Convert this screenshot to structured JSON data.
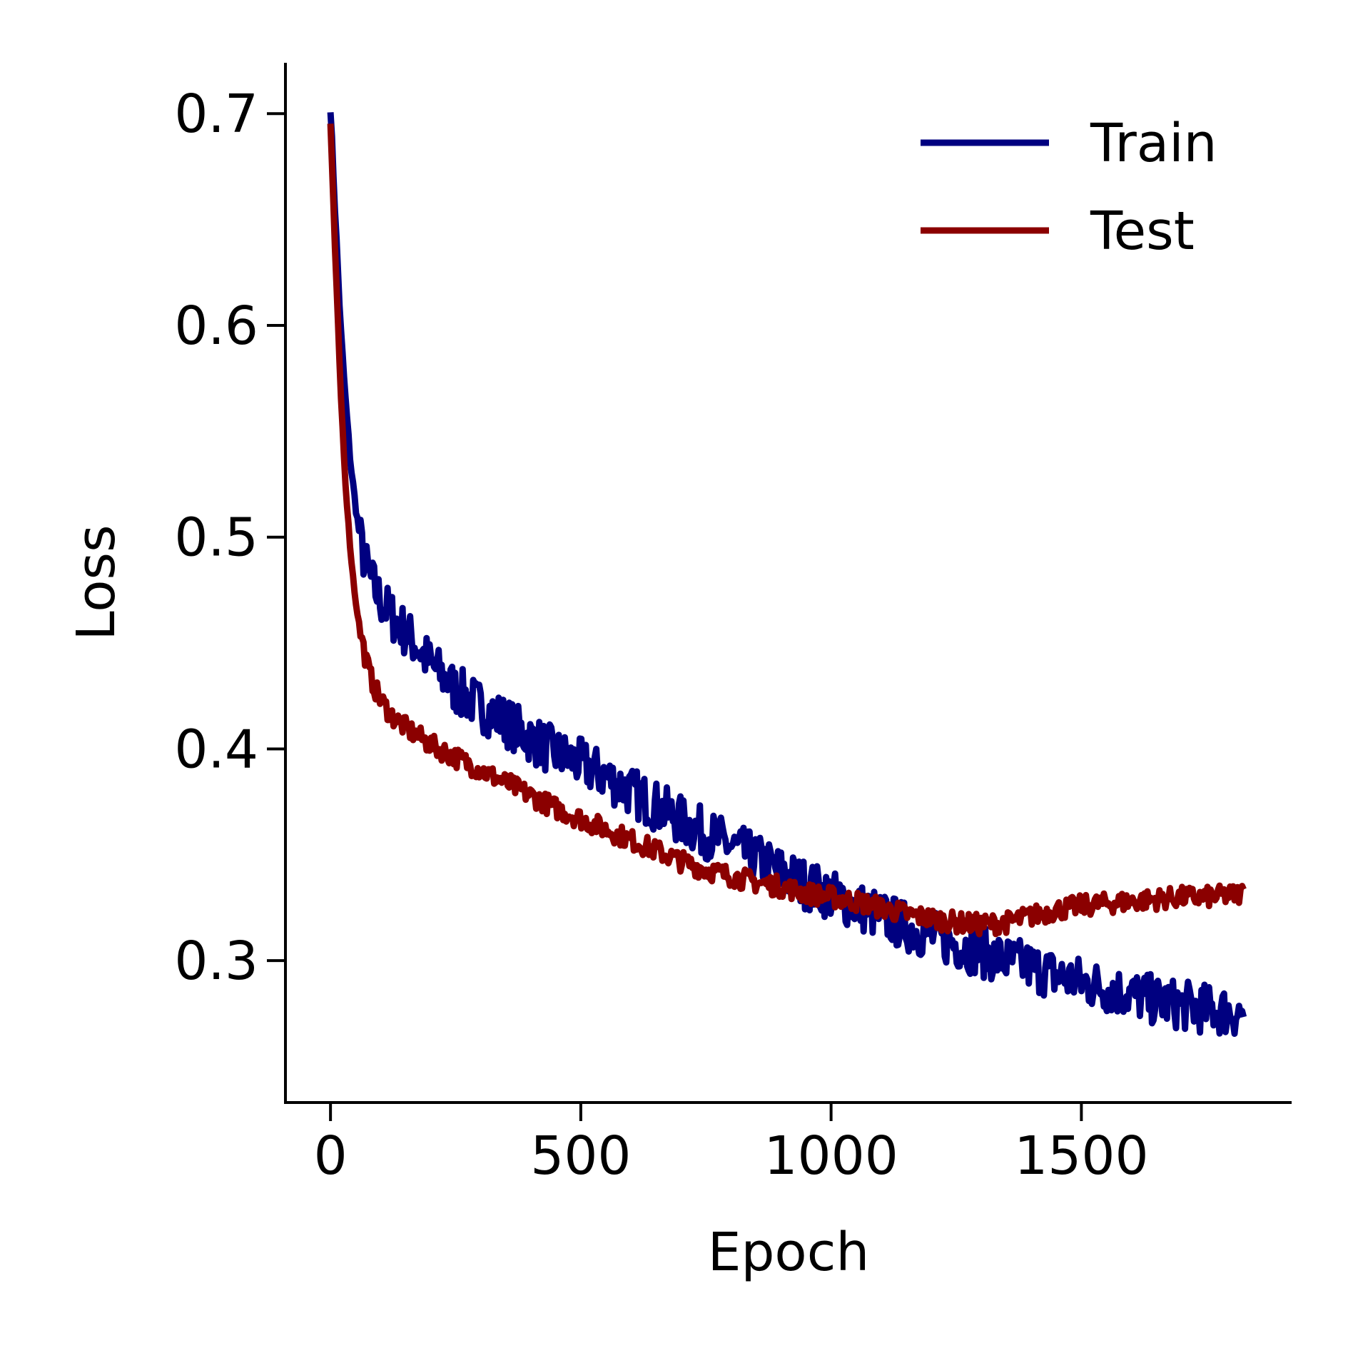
{
  "chart_data": {
    "type": "line",
    "title": "",
    "xlabel": "Epoch",
    "ylabel": "Loss",
    "xlim": [
      -90,
      1920
    ],
    "ylim": [
      0.233,
      0.724
    ],
    "xticks": [
      0,
      500,
      1000,
      1500
    ],
    "xtick_labels": [
      "0",
      "500",
      "1000",
      "1500"
    ],
    "yticks": [
      0.3,
      0.4,
      0.5,
      0.6,
      0.7
    ],
    "ytick_labels": [
      "0.3",
      "0.4",
      "0.5",
      "0.6",
      "0.7"
    ],
    "grid": false,
    "legend": {
      "placement": "top-right"
    },
    "series": [
      {
        "name": "Train",
        "color": "#000080",
        "x": [
          0,
          10,
          20,
          30,
          40,
          50,
          60,
          70,
          80,
          90,
          100,
          125,
          150,
          175,
          200,
          250,
          300,
          350,
          400,
          450,
          500,
          550,
          600,
          650,
          700,
          750,
          800,
          850,
          900,
          950,
          1000,
          1050,
          1100,
          1150,
          1200,
          1250,
          1300,
          1350,
          1400,
          1450,
          1500,
          1550,
          1600,
          1650,
          1700,
          1750,
          1800,
          1825
        ],
        "values": [
          0.703,
          0.65,
          0.6,
          0.565,
          0.535,
          0.515,
          0.498,
          0.487,
          0.48,
          0.475,
          0.47,
          0.462,
          0.455,
          0.448,
          0.44,
          0.428,
          0.42,
          0.413,
          0.405,
          0.398,
          0.393,
          0.387,
          0.38,
          0.373,
          0.366,
          0.36,
          0.354,
          0.348,
          0.342,
          0.336,
          0.331,
          0.326,
          0.321,
          0.316,
          0.312,
          0.308,
          0.304,
          0.3,
          0.297,
          0.293,
          0.29,
          0.287,
          0.284,
          0.281,
          0.279,
          0.277,
          0.276,
          0.275
        ],
        "noise": 0.012
      },
      {
        "name": "Test",
        "color": "#8b0000",
        "x": [
          0,
          10,
          20,
          30,
          40,
          50,
          60,
          70,
          80,
          90,
          100,
          125,
          150,
          175,
          200,
          250,
          300,
          350,
          400,
          450,
          500,
          550,
          600,
          650,
          700,
          750,
          800,
          850,
          900,
          950,
          1000,
          1050,
          1100,
          1150,
          1200,
          1250,
          1300,
          1350,
          1400,
          1450,
          1500,
          1550,
          1600,
          1650,
          1700,
          1750,
          1800,
          1825
        ],
        "values": [
          0.695,
          0.63,
          0.57,
          0.525,
          0.493,
          0.47,
          0.455,
          0.443,
          0.434,
          0.428,
          0.423,
          0.415,
          0.41,
          0.406,
          0.402,
          0.396,
          0.39,
          0.384,
          0.378,
          0.372,
          0.367,
          0.362,
          0.357,
          0.352,
          0.347,
          0.343,
          0.34,
          0.337,
          0.335,
          0.332,
          0.33,
          0.328,
          0.325,
          0.322,
          0.32,
          0.318,
          0.317,
          0.318,
          0.321,
          0.324,
          0.326,
          0.327,
          0.328,
          0.329,
          0.33,
          0.33,
          0.331,
          0.332
        ],
        "noise": 0.005
      }
    ]
  }
}
